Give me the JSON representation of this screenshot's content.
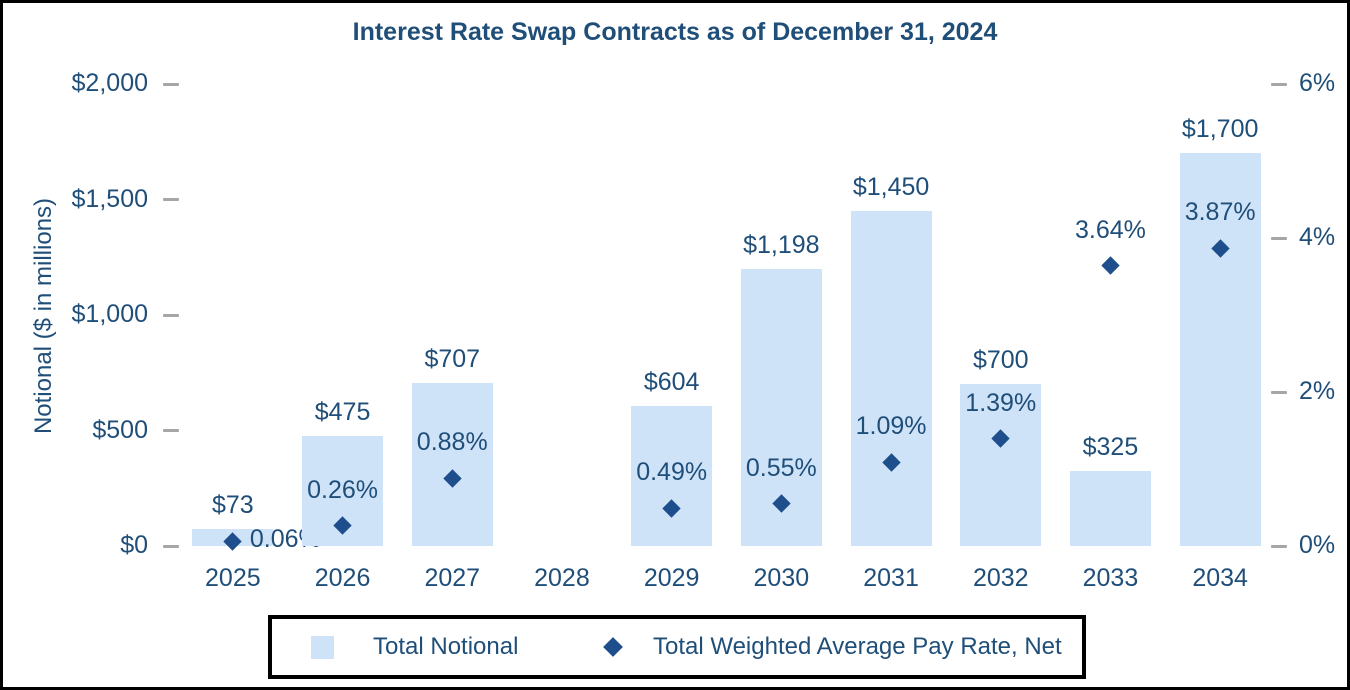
{
  "chart_data": {
    "type": "bar",
    "title": "Interest Rate Swap Contracts as of December 31, 2024",
    "categories": [
      "2025",
      "2026",
      "2027",
      "2028",
      "2029",
      "2030",
      "2031",
      "2032",
      "2033",
      "2034"
    ],
    "series": [
      {
        "name": "Total Notional",
        "chart_type": "bar",
        "axis": "left",
        "color": "#cfe3f8",
        "values": [
          73,
          475,
          707,
          null,
          604,
          1198,
          1450,
          700,
          325,
          1700
        ],
        "labels": [
          "$73",
          "$475",
          "$707",
          null,
          "$604",
          "$1,198",
          "$1,450",
          "$700",
          "$325",
          "$1,700"
        ]
      },
      {
        "name": "Total Weighted Average Pay Rate, Net",
        "chart_type": "scatter",
        "marker": "diamond",
        "axis": "right",
        "color": "#1f4e8c",
        "values": [
          0.06,
          0.26,
          0.88,
          null,
          0.49,
          0.55,
          1.09,
          1.39,
          3.64,
          3.87
        ],
        "labels": [
          "0.06%",
          "0.26%",
          "0.88%",
          null,
          "0.49%",
          "0.55%",
          "1.09%",
          "1.39%",
          "3.64%",
          "3.87%"
        ]
      }
    ],
    "left_axis": {
      "title": "Notional ($ in millions)",
      "range": [
        0,
        2000
      ],
      "ticks": [
        {
          "value": 2000,
          "label": "$2,000"
        },
        {
          "value": 1500,
          "label": "$1,500"
        },
        {
          "value": 1000,
          "label": "$1,000"
        },
        {
          "value": 500,
          "label": "$500"
        },
        {
          "value": 0,
          "label": "$0"
        }
      ]
    },
    "right_axis": {
      "title": "",
      "range": [
        0,
        6
      ],
      "ticks": [
        {
          "value": 6,
          "label": "6%"
        },
        {
          "value": 4,
          "label": "4%"
        },
        {
          "value": 2,
          "label": "2%"
        },
        {
          "value": 0,
          "label": "0%"
        }
      ]
    },
    "legend": {
      "position": "bottom",
      "entries": [
        "Total Notional",
        "Total Weighted Average Pay Rate, Net"
      ]
    },
    "grid": false
  },
  "colors": {
    "text": "#1f4e79",
    "bar_fill": "#cfe3f8",
    "marker": "#1f4e8c",
    "tick": "#a6a6a6",
    "frame": "#000000",
    "background": "#ffffff"
  }
}
